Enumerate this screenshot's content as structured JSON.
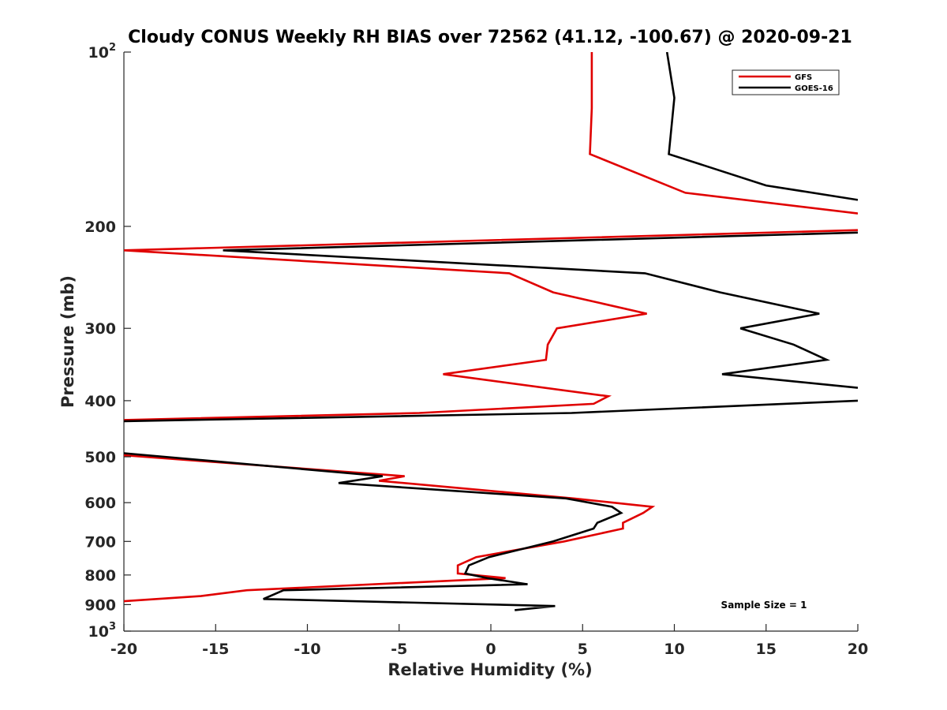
{
  "chart_data": {
    "type": "line",
    "title": "Cloudy CONUS Weekly RH BIAS over 72562 (41.12, -100.67) @ 2020-09-21",
    "xlabel": "Relative Humidity (%)",
    "ylabel": "Pressure (mb)",
    "xlim": [
      -20,
      20
    ],
    "ylim": [
      100,
      1000
    ],
    "yscale": "log",
    "y_reversed": true,
    "grid": false,
    "legend_position": "top-right",
    "x_ticks": [
      "-20",
      "-15",
      "-10",
      "-5",
      "0",
      "5",
      "10",
      "15",
      "20"
    ],
    "y_ticks": [
      {
        "value": 100,
        "label": "10",
        "sup": "2"
      },
      {
        "value": 200,
        "label": "200",
        "sup": ""
      },
      {
        "value": 300,
        "label": "300",
        "sup": ""
      },
      {
        "value": 400,
        "label": "400",
        "sup": ""
      },
      {
        "value": 500,
        "label": "500",
        "sup": ""
      },
      {
        "value": 600,
        "label": "600",
        "sup": ""
      },
      {
        "value": 700,
        "label": "700",
        "sup": ""
      },
      {
        "value": 800,
        "label": "800",
        "sup": ""
      },
      {
        "value": 900,
        "label": "900",
        "sup": ""
      },
      {
        "value": 1000,
        "label": "10",
        "sup": "3"
      }
    ],
    "series": [
      {
        "name": "GFS",
        "color": "#e00000",
        "segments": [
          [
            [
              5.5,
              100
            ],
            [
              5.5,
              125
            ],
            [
              5.4,
              150
            ],
            [
              10.6,
              175
            ],
            [
              20,
              190
            ]
          ],
          [
            [
              20,
              203
            ],
            [
              -20,
              220
            ],
            [
              1,
              241
            ],
            [
              3.4,
              260
            ],
            [
              8.5,
              283
            ],
            [
              3.6,
              300
            ],
            [
              3.1,
              320
            ],
            [
              3.0,
              340
            ],
            [
              -2.6,
              360
            ],
            [
              6.4,
              393
            ],
            [
              5.6,
              405
            ],
            [
              -3.9,
              420
            ],
            [
              -20,
              432
            ]
          ],
          [
            [
              -20,
              497
            ],
            [
              -4.7,
              540
            ],
            [
              -6.1,
              550
            ],
            [
              4.5,
              590
            ],
            [
              8.8,
              610
            ],
            [
              8.3,
              625
            ],
            [
              7.2,
              650
            ],
            [
              7.2,
              665
            ],
            [
              4.0,
              700
            ],
            [
              -0.8,
              745
            ],
            [
              -1.8,
              770
            ],
            [
              -1.8,
              795
            ],
            [
              0.8,
              810
            ],
            [
              -13.3,
              850
            ],
            [
              -15.8,
              870
            ],
            [
              -20,
              888
            ]
          ]
        ]
      },
      {
        "name": "GOES-16",
        "color": "#000000",
        "segments": [
          [
            [
              9.6,
              100
            ],
            [
              10,
              120
            ],
            [
              9.7,
              150
            ],
            [
              15,
              170
            ],
            [
              20,
              180
            ]
          ],
          [
            [
              20,
              205
            ],
            [
              -14.6,
              220
            ],
            [
              8.4,
              241
            ],
            [
              12.5,
              260
            ],
            [
              17.9,
              283
            ],
            [
              13.6,
              300
            ],
            [
              16.5,
              320
            ],
            [
              18.3,
              340
            ],
            [
              12.6,
              360
            ],
            [
              20,
              380
            ]
          ],
          [
            [
              20,
              400
            ],
            [
              4.4,
              420
            ],
            [
              -20,
              434
            ]
          ],
          [
            [
              -20,
              493
            ],
            [
              -5.9,
              540
            ],
            [
              -8.3,
              555
            ],
            [
              4.1,
              590
            ],
            [
              6.6,
              610
            ],
            [
              7.1,
              625
            ],
            [
              5.8,
              650
            ],
            [
              5.6,
              665
            ],
            [
              3.4,
              700
            ],
            [
              -0.1,
              745
            ],
            [
              -1.2,
              770
            ],
            [
              -1.4,
              795
            ],
            [
              -0.2,
              810
            ],
            [
              2.0,
              830
            ],
            [
              -11.3,
              850
            ],
            [
              -12.4,
              880
            ],
            [
              3.5,
              905
            ],
            [
              1.3,
              920
            ]
          ]
        ]
      }
    ],
    "annotation": "Sample Size = 1"
  }
}
